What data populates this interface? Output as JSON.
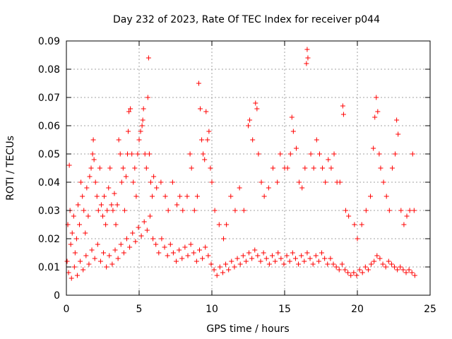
{
  "chart_data": {
    "type": "scatter",
    "title": "Day 232 of 2023, Rate Of TEC Index for receiver p044",
    "xlabel": "GPS time / hours",
    "ylabel": "ROTI / TECUs",
    "xlim": [
      0,
      25
    ],
    "ylim": [
      0,
      0.09
    ],
    "xticks": [
      0,
      5,
      10,
      15,
      20,
      25
    ],
    "xtick_labels": [
      "0",
      "5",
      "10",
      "15",
      "20",
      "25"
    ],
    "yticks": [
      0,
      0.01,
      0.02,
      0.03,
      0.04,
      0.05,
      0.06,
      0.07,
      0.08,
      0.09
    ],
    "ytick_labels": [
      "0",
      "0.01",
      "0.02",
      "0.03",
      "0.04",
      "0.05",
      "0.06",
      "0.07",
      "0.08",
      "0.09"
    ],
    "grid": true,
    "marker": "plus",
    "marker_color": "#ff0000",
    "series": [
      {
        "points": [
          [
            0.05,
            0.012
          ],
          [
            0.1,
            0.025
          ],
          [
            0.2,
            0.046
          ],
          [
            0.25,
            0.03
          ],
          [
            0.3,
            0.018
          ],
          [
            0.4,
            0.022
          ],
          [
            0.5,
            0.028
          ],
          [
            0.6,
            0.015
          ],
          [
            0.7,
            0.02
          ],
          [
            0.8,
            0.032
          ],
          [
            0.9,
            0.025
          ],
          [
            1.0,
            0.04
          ],
          [
            1.1,
            0.035
          ],
          [
            1.2,
            0.03
          ],
          [
            1.3,
            0.022
          ],
          [
            1.4,
            0.038
          ],
          [
            1.5,
            0.028
          ],
          [
            1.6,
            0.042
          ],
          [
            1.7,
            0.045
          ],
          [
            1.8,
            0.05
          ],
          [
            1.85,
            0.055
          ],
          [
            1.9,
            0.048
          ],
          [
            2.0,
            0.04
          ],
          [
            2.1,
            0.035
          ],
          [
            2.2,
            0.03
          ],
          [
            2.3,
            0.045
          ],
          [
            2.4,
            0.032
          ],
          [
            2.5,
            0.028
          ],
          [
            2.6,
            0.035
          ],
          [
            2.7,
            0.025
          ],
          [
            2.8,
            0.03
          ],
          [
            2.9,
            0.038
          ],
          [
            3.0,
            0.045
          ],
          [
            3.1,
            0.032
          ],
          [
            3.2,
            0.03
          ],
          [
            3.3,
            0.036
          ],
          [
            3.4,
            0.025
          ],
          [
            3.5,
            0.032
          ],
          [
            3.6,
            0.055
          ],
          [
            3.7,
            0.05
          ],
          [
            3.8,
            0.04
          ],
          [
            3.9,
            0.045
          ],
          [
            4.0,
            0.03
          ],
          [
            4.1,
            0.042
          ],
          [
            4.2,
            0.05
          ],
          [
            4.25,
            0.058
          ],
          [
            4.3,
            0.065
          ],
          [
            4.4,
            0.066
          ],
          [
            4.5,
            0.05
          ],
          [
            4.6,
            0.04
          ],
          [
            4.7,
            0.045
          ],
          [
            4.8,
            0.035
          ],
          [
            4.9,
            0.05
          ],
          [
            5.0,
            0.055
          ],
          [
            5.1,
            0.058
          ],
          [
            5.2,
            0.06
          ],
          [
            5.25,
            0.062
          ],
          [
            5.3,
            0.066
          ],
          [
            5.4,
            0.05
          ],
          [
            5.5,
            0.045
          ],
          [
            5.6,
            0.07
          ],
          [
            5.65,
            0.084
          ],
          [
            5.7,
            0.05
          ],
          [
            5.8,
            0.04
          ],
          [
            5.9,
            0.035
          ],
          [
            6.0,
            0.042
          ],
          [
            6.2,
            0.038
          ],
          [
            6.5,
            0.04
          ],
          [
            6.8,
            0.035
          ],
          [
            7.0,
            0.03
          ],
          [
            7.3,
            0.04
          ],
          [
            7.6,
            0.032
          ],
          [
            7.8,
            0.035
          ],
          [
            8.0,
            0.03
          ],
          [
            8.3,
            0.035
          ],
          [
            8.5,
            0.05
          ],
          [
            8.6,
            0.045
          ],
          [
            8.8,
            0.03
          ],
          [
            9.0,
            0.035
          ],
          [
            9.1,
            0.075
          ],
          [
            9.2,
            0.066
          ],
          [
            9.3,
            0.055
          ],
          [
            9.4,
            0.05
          ],
          [
            9.5,
            0.048
          ],
          [
            9.6,
            0.065
          ],
          [
            9.7,
            0.055
          ],
          [
            9.8,
            0.058
          ],
          [
            9.9,
            0.045
          ],
          [
            10.0,
            0.04
          ],
          [
            10.2,
            0.03
          ],
          [
            10.5,
            0.025
          ],
          [
            10.8,
            0.02
          ],
          [
            11.0,
            0.025
          ],
          [
            11.3,
            0.035
          ],
          [
            11.6,
            0.03
          ],
          [
            11.9,
            0.038
          ],
          [
            12.2,
            0.03
          ],
          [
            12.5,
            0.06
          ],
          [
            12.6,
            0.062
          ],
          [
            12.8,
            0.055
          ],
          [
            13.0,
            0.068
          ],
          [
            13.1,
            0.066
          ],
          [
            13.2,
            0.05
          ],
          [
            13.4,
            0.04
          ],
          [
            13.6,
            0.035
          ],
          [
            13.9,
            0.038
          ],
          [
            14.2,
            0.045
          ],
          [
            14.5,
            0.04
          ],
          [
            14.7,
            0.05
          ],
          [
            15.0,
            0.045
          ],
          [
            15.2,
            0.045
          ],
          [
            15.4,
            0.05
          ],
          [
            15.5,
            0.063
          ],
          [
            15.6,
            0.058
          ],
          [
            15.8,
            0.052
          ],
          [
            16.0,
            0.04
          ],
          [
            16.2,
            0.038
          ],
          [
            16.4,
            0.045
          ],
          [
            16.5,
            0.082
          ],
          [
            16.55,
            0.087
          ],
          [
            16.6,
            0.084
          ],
          [
            16.8,
            0.05
          ],
          [
            17.0,
            0.045
          ],
          [
            17.2,
            0.055
          ],
          [
            17.4,
            0.05
          ],
          [
            17.6,
            0.045
          ],
          [
            17.8,
            0.04
          ],
          [
            18.0,
            0.048
          ],
          [
            18.2,
            0.045
          ],
          [
            18.4,
            0.05
          ],
          [
            18.6,
            0.04
          ],
          [
            18.8,
            0.04
          ],
          [
            19.0,
            0.067
          ],
          [
            19.05,
            0.064
          ],
          [
            19.2,
            0.03
          ],
          [
            19.4,
            0.028
          ],
          [
            19.8,
            0.025
          ],
          [
            20.0,
            0.02
          ],
          [
            20.3,
            0.025
          ],
          [
            20.6,
            0.03
          ],
          [
            20.9,
            0.035
          ],
          [
            21.1,
            0.052
          ],
          [
            21.2,
            0.063
          ],
          [
            21.3,
            0.07
          ],
          [
            21.4,
            0.065
          ],
          [
            21.5,
            0.05
          ],
          [
            21.6,
            0.045
          ],
          [
            21.8,
            0.04
          ],
          [
            22.0,
            0.035
          ],
          [
            22.2,
            0.03
          ],
          [
            22.4,
            0.045
          ],
          [
            22.6,
            0.05
          ],
          [
            22.7,
            0.062
          ],
          [
            22.8,
            0.057
          ],
          [
            23.0,
            0.03
          ],
          [
            23.2,
            0.025
          ],
          [
            23.4,
            0.028
          ],
          [
            23.6,
            0.03
          ],
          [
            23.8,
            0.05
          ],
          [
            23.9,
            0.03
          ],
          [
            0.15,
            0.008
          ],
          [
            0.35,
            0.006
          ],
          [
            0.55,
            0.01
          ],
          [
            0.75,
            0.007
          ],
          [
            0.95,
            0.012
          ],
          [
            1.15,
            0.009
          ],
          [
            1.35,
            0.014
          ],
          [
            1.55,
            0.011
          ],
          [
            1.75,
            0.016
          ],
          [
            1.95,
            0.013
          ],
          [
            2.15,
            0.018
          ],
          [
            2.35,
            0.012
          ],
          [
            2.55,
            0.015
          ],
          [
            2.75,
            0.01
          ],
          [
            2.95,
            0.014
          ],
          [
            3.15,
            0.011
          ],
          [
            3.35,
            0.016
          ],
          [
            3.55,
            0.013
          ],
          [
            3.75,
            0.018
          ],
          [
            3.95,
            0.015
          ],
          [
            4.15,
            0.02
          ],
          [
            4.35,
            0.017
          ],
          [
            4.55,
            0.022
          ],
          [
            4.75,
            0.019
          ],
          [
            4.95,
            0.024
          ],
          [
            5.15,
            0.021
          ],
          [
            5.35,
            0.026
          ],
          [
            5.55,
            0.023
          ],
          [
            5.75,
            0.028
          ],
          [
            5.95,
            0.02
          ],
          [
            6.15,
            0.018
          ],
          [
            6.35,
            0.015
          ],
          [
            6.55,
            0.02
          ],
          [
            6.75,
            0.017
          ],
          [
            6.95,
            0.014
          ],
          [
            7.15,
            0.018
          ],
          [
            7.35,
            0.015
          ],
          [
            7.55,
            0.012
          ],
          [
            7.75,
            0.016
          ],
          [
            7.95,
            0.013
          ],
          [
            8.15,
            0.017
          ],
          [
            8.35,
            0.014
          ],
          [
            8.55,
            0.018
          ],
          [
            8.75,
            0.015
          ],
          [
            8.95,
            0.012
          ],
          [
            9.15,
            0.016
          ],
          [
            9.35,
            0.013
          ],
          [
            9.55,
            0.017
          ],
          [
            9.75,
            0.014
          ],
          [
            9.95,
            0.011
          ],
          [
            10.15,
            0.009
          ],
          [
            10.35,
            0.007
          ],
          [
            10.55,
            0.01
          ],
          [
            10.75,
            0.008
          ],
          [
            10.95,
            0.011
          ],
          [
            11.15,
            0.009
          ],
          [
            11.35,
            0.012
          ],
          [
            11.55,
            0.01
          ],
          [
            11.75,
            0.013
          ],
          [
            11.95,
            0.011
          ],
          [
            12.15,
            0.014
          ],
          [
            12.35,
            0.012
          ],
          [
            12.55,
            0.015
          ],
          [
            12.75,
            0.013
          ],
          [
            12.95,
            0.016
          ],
          [
            13.15,
            0.014
          ],
          [
            13.35,
            0.012
          ],
          [
            13.55,
            0.015
          ],
          [
            13.75,
            0.013
          ],
          [
            13.95,
            0.011
          ],
          [
            14.15,
            0.014
          ],
          [
            14.35,
            0.012
          ],
          [
            14.55,
            0.015
          ],
          [
            14.75,
            0.013
          ],
          [
            14.95,
            0.011
          ],
          [
            15.15,
            0.014
          ],
          [
            15.35,
            0.012
          ],
          [
            15.55,
            0.015
          ],
          [
            15.75,
            0.013
          ],
          [
            15.95,
            0.011
          ],
          [
            16.15,
            0.014
          ],
          [
            16.35,
            0.012
          ],
          [
            16.55,
            0.015
          ],
          [
            16.75,
            0.013
          ],
          [
            16.95,
            0.011
          ],
          [
            17.15,
            0.014
          ],
          [
            17.35,
            0.012
          ],
          [
            17.55,
            0.015
          ],
          [
            17.75,
            0.013
          ],
          [
            17.95,
            0.011
          ],
          [
            18.15,
            0.013
          ],
          [
            18.35,
            0.011
          ],
          [
            18.55,
            0.01
          ],
          [
            18.75,
            0.009
          ],
          [
            18.95,
            0.011
          ],
          [
            19.15,
            0.009
          ],
          [
            19.35,
            0.008
          ],
          [
            19.55,
            0.007
          ],
          [
            19.75,
            0.008
          ],
          [
            19.95,
            0.007
          ],
          [
            20.15,
            0.009
          ],
          [
            20.35,
            0.008
          ],
          [
            20.55,
            0.01
          ],
          [
            20.75,
            0.009
          ],
          [
            20.95,
            0.011
          ],
          [
            21.15,
            0.012
          ],
          [
            21.35,
            0.014
          ],
          [
            21.55,
            0.013
          ],
          [
            21.75,
            0.011
          ],
          [
            21.95,
            0.01
          ],
          [
            22.15,
            0.012
          ],
          [
            22.35,
            0.011
          ],
          [
            22.55,
            0.01
          ],
          [
            22.75,
            0.009
          ],
          [
            22.95,
            0.01
          ],
          [
            23.15,
            0.009
          ],
          [
            23.35,
            0.008
          ],
          [
            23.55,
            0.009
          ],
          [
            23.75,
            0.008
          ],
          [
            23.95,
            0.007
          ]
        ]
      }
    ]
  }
}
